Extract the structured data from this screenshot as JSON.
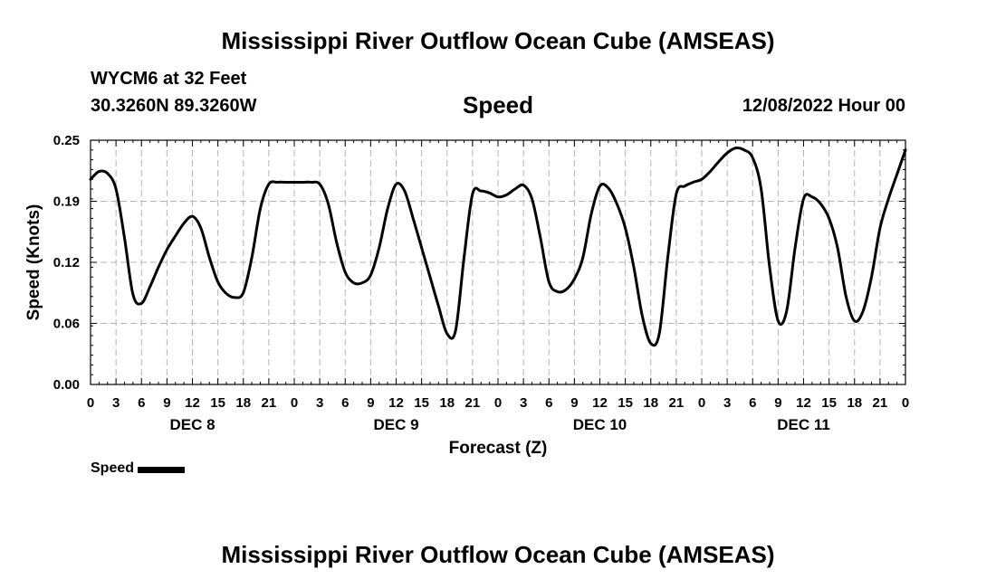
{
  "header": {
    "title": "Mississippi River Outflow Ocean Cube (AMSEAS)",
    "station": "WYCM6 at 32 Feet",
    "coordinates": "30.3260N  89.3260W",
    "chart_heading": "Speed",
    "datestamp": "12/08/2022 Hour 00"
  },
  "footer": {
    "title": "Mississippi River Outflow Ocean Cube (AMSEAS)"
  },
  "legend": {
    "label": "Speed",
    "color": "#000000"
  },
  "chart_data": {
    "type": "line",
    "title": "Speed",
    "xlabel": "Forecast (Z)",
    "ylabel": "Speed (Knots)",
    "x_unit": "forecast hour",
    "xlim": [
      0,
      96
    ],
    "ylim": [
      0.0,
      0.25
    ],
    "yticks": [
      "0.00",
      "0.06",
      "0.12",
      "0.19",
      "0.25"
    ],
    "ytick_values": [
      0.0,
      0.0625,
      0.125,
      0.1875,
      0.25
    ],
    "xtick_labels": [
      "0",
      "3",
      "6",
      "9",
      "12",
      "15",
      "18",
      "21",
      "0",
      "3",
      "6",
      "9",
      "12",
      "15",
      "18",
      "21",
      "0",
      "3",
      "6",
      "9",
      "12",
      "15",
      "18",
      "21",
      "0",
      "3",
      "6",
      "9",
      "12",
      "15",
      "18",
      "21",
      "0"
    ],
    "day_labels": [
      {
        "label": "DEC 8",
        "hour": 12
      },
      {
        "label": "DEC 9",
        "hour": 36
      },
      {
        "label": "DEC 10",
        "hour": 60
      },
      {
        "label": "DEC 11",
        "hour": 84
      }
    ],
    "grid": true,
    "series": [
      {
        "name": "Speed",
        "color": "#000000",
        "x": [
          0,
          1,
          2,
          3,
          4,
          5,
          6,
          7,
          8,
          9,
          10,
          11,
          12,
          13,
          14,
          15,
          16,
          17,
          18,
          19,
          20,
          21,
          22,
          23,
          24,
          25,
          26,
          27,
          28,
          29,
          30,
          31,
          32,
          33,
          34,
          35,
          36,
          37,
          38,
          39,
          40,
          41,
          42,
          43,
          44,
          45,
          46,
          47,
          48,
          49,
          50,
          51,
          52,
          53,
          54,
          55,
          56,
          57,
          58,
          59,
          60,
          61,
          62,
          63,
          64,
          65,
          66,
          67,
          68,
          69,
          70,
          71,
          72,
          73,
          74,
          75,
          76,
          77,
          78,
          79,
          80,
          81,
          82,
          83,
          84,
          85,
          86,
          87,
          88,
          89,
          90,
          91,
          92,
          93,
          94,
          95,
          96
        ],
        "values": [
          0.21,
          0.218,
          0.216,
          0.2,
          0.15,
          0.092,
          0.083,
          0.1,
          0.12,
          0.138,
          0.152,
          0.165,
          0.172,
          0.16,
          0.13,
          0.105,
          0.093,
          0.089,
          0.094,
          0.13,
          0.18,
          0.205,
          0.207,
          0.207,
          0.207,
          0.207,
          0.207,
          0.205,
          0.185,
          0.145,
          0.115,
          0.104,
          0.104,
          0.112,
          0.14,
          0.18,
          0.205,
          0.198,
          0.17,
          0.14,
          0.11,
          0.08,
          0.052,
          0.055,
          0.13,
          0.195,
          0.198,
          0.196,
          0.192,
          0.194,
          0.2,
          0.204,
          0.19,
          0.15,
          0.105,
          0.095,
          0.097,
          0.108,
          0.13,
          0.175,
          0.203,
          0.201,
          0.185,
          0.16,
          0.12,
          0.07,
          0.042,
          0.052,
          0.13,
          0.195,
          0.203,
          0.207,
          0.21,
          0.218,
          0.228,
          0.237,
          0.242,
          0.24,
          0.232,
          0.2,
          0.12,
          0.065,
          0.075,
          0.14,
          0.19,
          0.192,
          0.185,
          0.17,
          0.14,
          0.09,
          0.065,
          0.075,
          0.11,
          0.16,
          0.19,
          0.215,
          0.24
        ]
      }
    ]
  }
}
